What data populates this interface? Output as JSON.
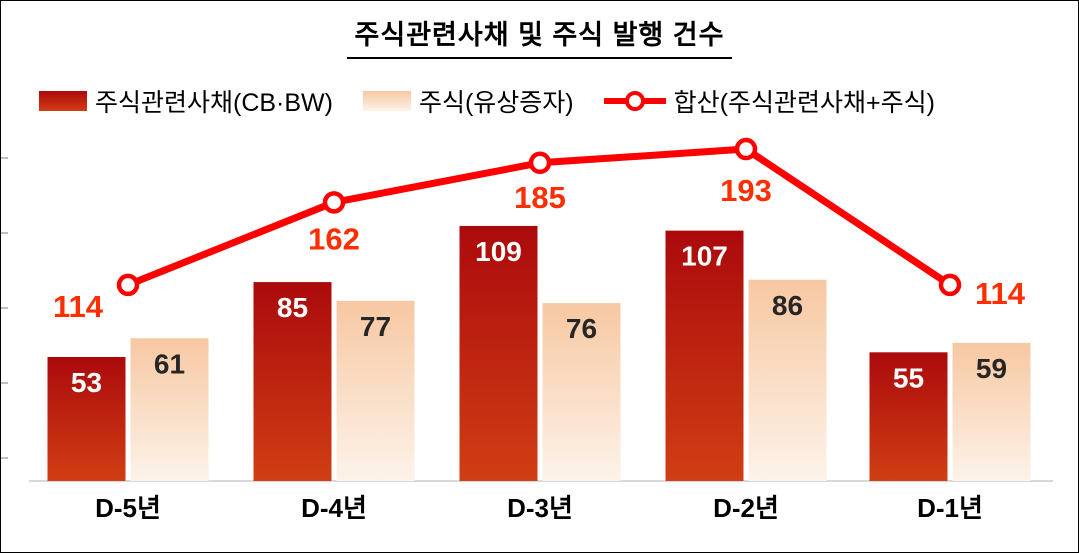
{
  "chart_data": {
    "type": "combo",
    "title": "주식관련사채 및 주식 발행 건수",
    "categories": [
      "D-5년",
      "D-4년",
      "D-3년",
      "D-2년",
      "D-1년"
    ],
    "series": [
      {
        "name": "주식관련사채(CB·BW)",
        "type": "bar",
        "values": [
          53,
          85,
          109,
          107,
          55
        ],
        "colors": {
          "top": "#ab0a0c",
          "bottom": "#d03e14"
        },
        "label_color": "#ffffff"
      },
      {
        "name": "주식(유상증자)",
        "type": "bar",
        "values": [
          61,
          77,
          76,
          86,
          59
        ],
        "colors": {
          "top": "#f7c8a2",
          "bottom": "#fdf3ea"
        },
        "label_color": "#262626"
      },
      {
        "name": "합산(주식관련사채+주식)",
        "type": "line",
        "values": [
          114,
          162,
          185,
          193,
          114
        ],
        "color": "#fe0000",
        "marker": "open-circle",
        "label_color": "#ff2e00"
      }
    ],
    "legend_position": "top",
    "grid": false,
    "y_axis_labels_visible": false,
    "axis_line_color": "#d9d9d9",
    "category_label_color": "#000000"
  }
}
